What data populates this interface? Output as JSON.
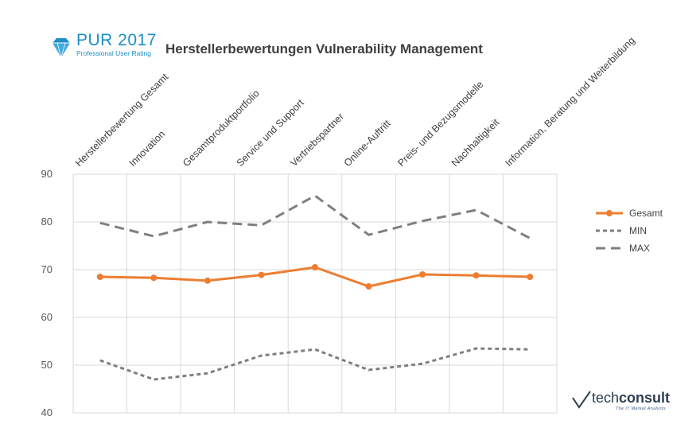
{
  "header": {
    "logo_main": "PUR 2017",
    "logo_sub": "Professional User Rating",
    "title": "Herstellerbewertungen Vulnerability Management"
  },
  "brand": {
    "name_light": "tech",
    "name_bold": "consult",
    "tagline": "The IT Market Analysts"
  },
  "colors": {
    "gesamt": "#ed7d31",
    "minmax": "#7f7f7f",
    "logo": "#1c8fc7"
  },
  "chart_data": {
    "type": "line",
    "categories": [
      "Herstellerbewertung Gesamt",
      "Innovation",
      "Gesamtproduktportfolio",
      "Service und Support",
      "Vertriebspartner",
      "Online-Auftritt",
      "Preis- und Bezugsmodelle",
      "Nachhaltigkeit",
      "Information, Beratung und Weiterbildung"
    ],
    "series": [
      {
        "name": "Gesamt",
        "values": [
          68.5,
          68.3,
          67.7,
          68.9,
          70.5,
          66.5,
          69.0,
          68.8,
          68.5
        ],
        "style": "solid-markers"
      },
      {
        "name": "MIN",
        "values": [
          51.0,
          47.0,
          48.3,
          52.0,
          53.3,
          49.0,
          50.3,
          53.5,
          53.3
        ],
        "style": "short-dash"
      },
      {
        "name": "MAX",
        "values": [
          79.8,
          77.0,
          80.0,
          79.3,
          85.5,
          77.3,
          80.2,
          82.5,
          76.6
        ],
        "style": "long-dash"
      }
    ],
    "y_ticks": [
      "40",
      "50",
      "60",
      "70",
      "80",
      "90"
    ],
    "ylim": [
      40,
      90
    ],
    "grid": "horizontal and vertical",
    "legend_position": "right"
  }
}
